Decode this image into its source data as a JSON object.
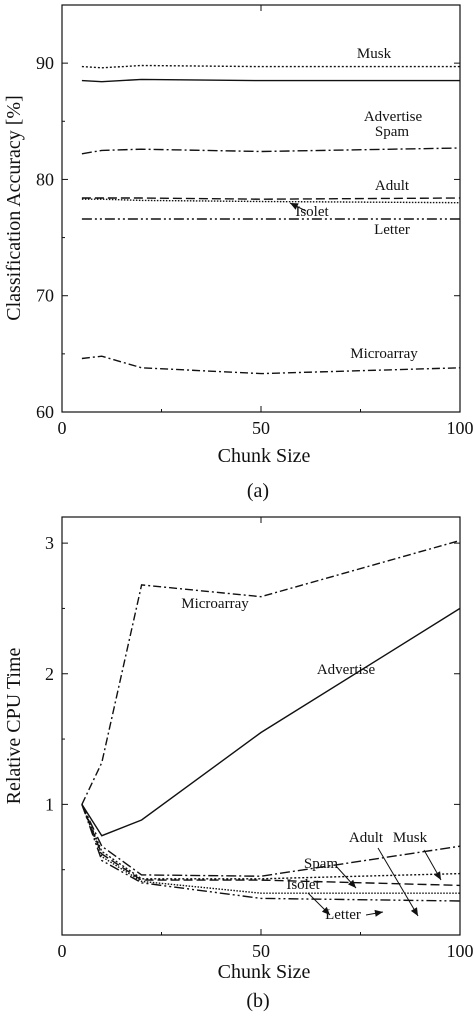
{
  "chart_data": [
    {
      "type": "line",
      "panel_label": "(a)",
      "xlabel": "Chunk Size",
      "ylabel": "Classification Accuracy [%]",
      "xlim": [
        0,
        100
      ],
      "ylim": [
        60,
        95
      ],
      "xticks": [
        "0",
        "50",
        "100"
      ],
      "yticks": [
        "60",
        "70",
        "80",
        "90"
      ],
      "x": [
        5,
        10,
        20,
        50,
        100
      ],
      "series": [
        {
          "name": "Musk",
          "values": [
            89.7,
            89.6,
            89.8,
            89.7,
            89.7
          ],
          "dash": "2,2"
        },
        {
          "name": "Advertise",
          "values": [
            88.5,
            88.4,
            88.6,
            88.5,
            88.5
          ],
          "dash": ""
        },
        {
          "name": "Spam",
          "values": [
            82.2,
            82.5,
            82.6,
            82.4,
            82.7
          ],
          "dash": "10,3,2,3"
        },
        {
          "name": "Adult",
          "values": [
            78.4,
            78.4,
            78.4,
            78.3,
            78.4
          ],
          "dash": "9,4"
        },
        {
          "name": "Isolet",
          "values": [
            78.3,
            78.3,
            78.2,
            78.1,
            78.0
          ],
          "dash": "1.5,1.5"
        },
        {
          "name": "Letter",
          "values": [
            76.6,
            76.6,
            76.6,
            76.6,
            76.6
          ],
          "dash": "10,3,2,3,2,3"
        },
        {
          "name": "Microarray",
          "values": [
            64.6,
            64.8,
            63.8,
            63.3,
            63.8
          ],
          "dash": "8,3,2,3"
        }
      ]
    },
    {
      "type": "line",
      "panel_label": "(b)",
      "xlabel": "Chunk Size",
      "ylabel": "Relative CPU Time",
      "xlim": [
        0,
        100
      ],
      "ylim": [
        0,
        3.2
      ],
      "xticks": [
        "0",
        "50",
        "100"
      ],
      "yticks": [
        "1",
        "2",
        "3"
      ],
      "x": [
        5,
        10,
        20,
        50,
        100
      ],
      "series": [
        {
          "name": "Microarray",
          "values": [
            1.0,
            1.32,
            2.68,
            2.59,
            3.02
          ],
          "dash": "8,3,2,3"
        },
        {
          "name": "Advertise",
          "values": [
            1.0,
            0.76,
            0.88,
            1.55,
            2.5
          ],
          "dash": ""
        },
        {
          "name": "Spam",
          "values": [
            1.0,
            0.68,
            0.46,
            0.45,
            0.68
          ],
          "dash": "10,3,2,3"
        },
        {
          "name": "Musk",
          "values": [
            1.0,
            0.64,
            0.43,
            0.43,
            0.47
          ],
          "dash": "2,2"
        },
        {
          "name": "Adult",
          "values": [
            1.0,
            0.62,
            0.42,
            0.42,
            0.38
          ],
          "dash": "9,4"
        },
        {
          "name": "Isolet",
          "values": [
            1.0,
            0.6,
            0.41,
            0.32,
            0.32
          ],
          "dash": "1.5,1.5"
        },
        {
          "name": "Letter",
          "values": [
            1.0,
            0.57,
            0.4,
            0.28,
            0.26
          ],
          "dash": "10,3,2,3,2,3"
        }
      ]
    }
  ]
}
